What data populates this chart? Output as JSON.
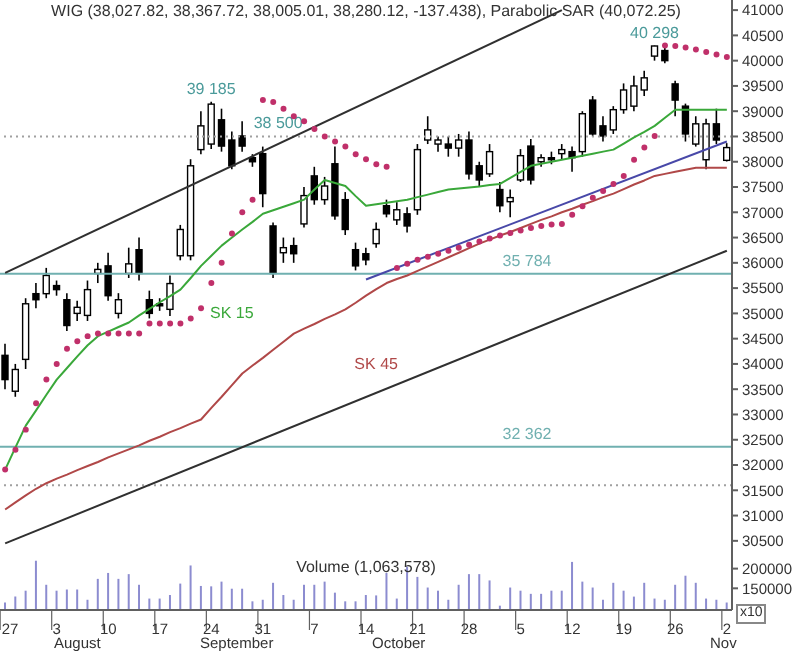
{
  "chart_data": [
    {
      "type": "candlestick",
      "title": "WIG (38,027.82, 38,367.72, 38,005.01, 38,280.12, -137.438), Parabolic SAR (40,072.25)",
      "categories": [
        "27",
        null,
        null,
        null,
        null,
        "3",
        null,
        null,
        null,
        null,
        "10",
        null,
        null,
        null,
        null,
        "17",
        null,
        null,
        null,
        null,
        "24",
        null,
        null,
        null,
        null,
        "31",
        null,
        null,
        null,
        null,
        "7",
        null,
        null,
        null,
        null,
        "14",
        null,
        null,
        null,
        null,
        "21",
        null,
        null,
        null,
        null,
        "28",
        null,
        null,
        null,
        null,
        "5",
        null,
        null,
        null,
        null,
        "12",
        null,
        null,
        null,
        null,
        "19",
        null,
        null,
        null,
        null,
        "26",
        null,
        null,
        null,
        null,
        "2"
      ],
      "tick_labels": "y",
      "color": "#000000",
      "ohlc": [
        [
          34170,
          34400,
          33500,
          33690
        ],
        [
          33460,
          34000,
          33350,
          33890
        ],
        [
          34090,
          35300,
          33900,
          35190
        ],
        [
          35390,
          35600,
          35100,
          35270
        ],
        [
          35390,
          35900,
          35300,
          35750
        ],
        [
          35550,
          35650,
          35350,
          35470
        ],
        [
          35270,
          35400,
          34650,
          34760
        ],
        [
          35000,
          35250,
          34850,
          35120
        ],
        [
          34960,
          35650,
          34850,
          35470
        ],
        [
          35790,
          36000,
          35600,
          35870
        ],
        [
          35940,
          36200,
          35250,
          35350
        ],
        [
          35000,
          35400,
          34900,
          35270
        ],
        [
          35790,
          36300,
          35700,
          35980
        ],
        [
          36260,
          36500,
          35650,
          35790
        ],
        [
          35270,
          35450,
          34900,
          35000
        ],
        [
          35190,
          35300,
          35050,
          35150
        ],
        [
          35080,
          35750,
          34950,
          35590
        ],
        [
          36140,
          36750,
          36050,
          36660
        ],
        [
          36140,
          38050,
          36050,
          37920
        ],
        [
          38240,
          39000,
          38150,
          38710
        ],
        [
          38350,
          39185,
          38250,
          39140
        ],
        [
          38830,
          39050,
          38200,
          38310
        ],
        [
          38430,
          38600,
          37850,
          37920
        ],
        [
          38510,
          38800,
          38200,
          38310
        ],
        [
          38080,
          38150,
          37900,
          38000
        ],
        [
          38160,
          38300,
          37100,
          37370
        ],
        [
          36730,
          36800,
          35700,
          35790
        ],
        [
          36200,
          36500,
          36000,
          36300
        ],
        [
          36340,
          36500,
          36000,
          36180
        ],
        [
          36770,
          37500,
          36700,
          37330
        ],
        [
          37720,
          37900,
          37150,
          37250
        ],
        [
          37250,
          37700,
          37150,
          37520
        ],
        [
          37960,
          38300,
          36850,
          36930
        ],
        [
          37250,
          37400,
          36550,
          36660
        ],
        [
          36260,
          36400,
          35850,
          35940
        ],
        [
          36180,
          36300,
          35950,
          36060
        ],
        [
          36380,
          36800,
          36300,
          36660
        ],
        [
          37130,
          37250,
          36900,
          36970
        ],
        [
          36850,
          37200,
          36750,
          37050
        ],
        [
          36970,
          37100,
          36600,
          36730
        ],
        [
          37050,
          38350,
          36950,
          38240
        ],
        [
          38430,
          38900,
          38350,
          38630
        ],
        [
          38350,
          38500,
          38200,
          38430
        ],
        [
          38350,
          38500,
          38100,
          38270
        ],
        [
          38270,
          38550,
          38100,
          38430
        ],
        [
          38430,
          38600,
          37650,
          37760
        ],
        [
          37920,
          38000,
          37500,
          37640
        ],
        [
          37760,
          38350,
          37700,
          38200
        ],
        [
          37450,
          37600,
          37000,
          37130
        ],
        [
          37210,
          37450,
          36900,
          37290
        ],
        [
          37640,
          38250,
          37600,
          38120
        ],
        [
          38310,
          38450,
          37550,
          37640
        ],
        [
          38000,
          38150,
          37900,
          38080
        ],
        [
          38080,
          38200,
          37950,
          38040
        ],
        [
          38160,
          38350,
          38050,
          38240
        ],
        [
          38200,
          38300,
          37800,
          38080
        ],
        [
          38200,
          39000,
          38100,
          38950
        ],
        [
          39220,
          39300,
          38500,
          38550
        ],
        [
          38710,
          38900,
          38400,
          38510
        ],
        [
          38630,
          39100,
          38550,
          39030
        ],
        [
          39030,
          39550,
          38950,
          39420
        ],
        [
          39100,
          39700,
          39000,
          39500
        ],
        [
          39420,
          39800,
          39300,
          39660
        ],
        [
          40090,
          40298,
          40000,
          40290
        ],
        [
          40200,
          40280,
          39950,
          40000
        ],
        [
          39540,
          39600,
          38900,
          39220
        ],
        [
          39100,
          39150,
          38400,
          38550
        ],
        [
          38350,
          38900,
          38300,
          38750
        ],
        [
          38040,
          38850,
          37850,
          38750
        ],
        [
          38750,
          39050,
          38350,
          38430
        ],
        [
          38027.82,
          38367.72,
          38005.01,
          38280.12
        ]
      ],
      "series": [
        {
          "type": "line",
          "name": "SK 15",
          "color": "#3aa83a",
          "values": [
            31910,
            32350,
            32780,
            33080,
            33390,
            33690,
            33920,
            34150,
            34370,
            34550,
            34640,
            34730,
            34820,
            34960,
            35090,
            35220,
            35340,
            35470,
            35700,
            35940,
            36140,
            36340,
            36500,
            36660,
            36810,
            36970,
            37040,
            37110,
            37180,
            37250,
            37450,
            37640,
            37580,
            37520,
            37320,
            37130,
            37160,
            37190,
            37220,
            37250,
            37300,
            37350,
            37400,
            37450,
            37470,
            37490,
            37510,
            37540,
            37560,
            37680,
            37800,
            37920,
            37960,
            38000,
            38040,
            38080,
            38120,
            38160,
            38200,
            38240,
            38360,
            38480,
            38590,
            38710,
            38870,
            39030,
            39030,
            39030,
            39030,
            39030,
            39030
          ]
        },
        {
          "type": "line",
          "name": "SK 45",
          "color": "#b04848",
          "values": [
            31120,
            31260,
            31400,
            31530,
            31640,
            31730,
            31810,
            31900,
            31980,
            32060,
            32150,
            32230,
            32310,
            32390,
            32480,
            32560,
            32650,
            32730,
            32820,
            32900,
            33130,
            33350,
            33580,
            33810,
            33970,
            34120,
            34280,
            34440,
            34600,
            34700,
            34790,
            34890,
            34980,
            35080,
            35210,
            35350,
            35480,
            35600,
            35680,
            35750,
            35840,
            35930,
            36020,
            36110,
            36200,
            36290,
            36380,
            36460,
            36540,
            36610,
            36690,
            36770,
            36850,
            36920,
            37000,
            37070,
            37150,
            37220,
            37300,
            37370,
            37460,
            37550,
            37630,
            37720,
            37760,
            37800,
            37840,
            37880,
            37880,
            37880,
            37880
          ]
        },
        {
          "type": "scatter",
          "marker": "circle",
          "color": "#c0306a",
          "values": [
            31910,
            32300,
            32700,
            33220,
            33690,
            34000,
            34300,
            34450,
            34550,
            34600,
            34600,
            34600,
            34600,
            34600,
            34800,
            34800,
            34800,
            34800,
            34900,
            35100,
            35600,
            36000,
            36580,
            37000,
            37250,
            39220,
            39180,
            39050,
            38900,
            38800,
            38650,
            38500,
            38400,
            38300,
            38150,
            38050,
            37950,
            37900,
            35900,
            35980,
            36060,
            36120,
            36180,
            36240,
            36300,
            36360,
            36420,
            36480,
            36540,
            36590,
            36640,
            36690,
            36730,
            36760,
            36770,
            36950,
            37120,
            37290,
            37420,
            37560,
            37720,
            38040,
            38280,
            38510,
            40300,
            40290,
            40260,
            40220,
            40170,
            40120,
            40072.25
          ]
        },
        {
          "type": "line",
          "color": "#303030",
          "values": [
            35800,
            null,
            null,
            null,
            null,
            null,
            null,
            null,
            null,
            null,
            null,
            null,
            null,
            null,
            null,
            null,
            null,
            null,
            null,
            null,
            null,
            null,
            null,
            null,
            null,
            null,
            null,
            null,
            null,
            null,
            null,
            null,
            null,
            null,
            null,
            null,
            null,
            null,
            null,
            null,
            null,
            null,
            null,
            null,
            null,
            null,
            null,
            null,
            null,
            null,
            null,
            null,
            null,
            null,
            41000,
            null,
            null,
            null,
            null,
            null,
            null,
            null,
            null,
            null,
            null,
            null,
            null,
            null,
            null,
            null,
            null
          ]
        },
        {
          "type": "line",
          "color": "#303030",
          "values": [
            30450,
            null,
            null,
            null,
            null,
            null,
            null,
            null,
            null,
            null,
            null,
            null,
            null,
            null,
            null,
            null,
            null,
            null,
            null,
            null,
            null,
            null,
            null,
            null,
            null,
            null,
            null,
            null,
            null,
            null,
            null,
            null,
            null,
            null,
            null,
            null,
            null,
            null,
            null,
            null,
            null,
            null,
            null,
            null,
            null,
            null,
            null,
            null,
            null,
            null,
            null,
            null,
            null,
            null,
            null,
            null,
            null,
            null,
            null,
            null,
            null,
            null,
            null,
            null,
            null,
            null,
            null,
            null,
            null,
            null,
            36240
          ]
        },
        {
          "type": "line",
          "color": "#4848a8",
          "values": [
            null,
            null,
            null,
            null,
            null,
            null,
            null,
            null,
            null,
            null,
            null,
            null,
            null,
            null,
            null,
            null,
            null,
            null,
            null,
            null,
            null,
            null,
            null,
            null,
            null,
            null,
            null,
            null,
            null,
            null,
            null,
            null,
            null,
            null,
            null,
            35670,
            null,
            null,
            null,
            null,
            null,
            null,
            null,
            null,
            null,
            null,
            null,
            null,
            null,
            null,
            null,
            null,
            null,
            null,
            null,
            null,
            null,
            null,
            null,
            null,
            null,
            null,
            null,
            null,
            null,
            null,
            null,
            null,
            null,
            null,
            38400
          ]
        }
      ],
      "ylim": [
        30200,
        41200
      ],
      "yticks": [
        30500,
        31000,
        31500,
        32000,
        32500,
        33000,
        33500,
        34000,
        34500,
        35000,
        35500,
        36000,
        36500,
        37000,
        37500,
        38000,
        38500,
        39000,
        39500,
        40000,
        40500,
        41000
      ],
      "ref_lines": [
        {
          "axis": "y",
          "value": 38500,
          "label": "38 500",
          "color": "#a0a0a0",
          "line_style": "dotted"
        },
        {
          "axis": "y",
          "value": 35784,
          "label": "35 784",
          "color": "#70b0b0",
          "line_style": "solid"
        },
        {
          "axis": "y",
          "value": 32362,
          "label": "32 362",
          "color": "#70b0b0",
          "line_style": "solid"
        },
        {
          "axis": "y",
          "value": 31600,
          "label": null,
          "color": "#a0a0a0",
          "line_style": "dotted"
        }
      ],
      "annotations": [
        {
          "text": "39 185",
          "y": 39185
        },
        {
          "text": "40 298",
          "y": 40298
        }
      ]
    },
    {
      "type": "bar",
      "title": "Volume (1,063,578)",
      "color": "#8c8cd0",
      "categories": [
        "27",
        null,
        null,
        null,
        null,
        "3",
        null,
        null,
        null,
        null,
        "10",
        null,
        null,
        null,
        null,
        "17",
        null,
        null,
        null,
        null,
        "24",
        null,
        null,
        null,
        null,
        "31",
        null,
        null,
        null,
        null,
        "7",
        null,
        null,
        null,
        null,
        "14",
        null,
        null,
        null,
        null,
        "21",
        null,
        null,
        null,
        null,
        "28",
        null,
        null,
        null,
        null,
        "5",
        null,
        null,
        null,
        null,
        "12",
        null,
        null,
        null,
        null,
        "19",
        null,
        null,
        null,
        null,
        "26",
        null,
        null,
        null,
        null,
        "2"
      ],
      "values": [
        114000,
        129000,
        144000,
        220000,
        159000,
        144000,
        147000,
        147000,
        121000,
        174000,
        189000,
        174000,
        186000,
        159000,
        124000,
        124000,
        133000,
        162000,
        208000,
        156000,
        155000,
        167000,
        149000,
        149000,
        117000,
        121000,
        164000,
        133000,
        121000,
        159000,
        159000,
        167000,
        139000,
        117000,
        117000,
        133000,
        132000,
        189000,
        124000,
        205000,
        179000,
        152000,
        144000,
        121000,
        159000,
        186000,
        186000,
        170000,
        106000,
        152000,
        144000,
        136000,
        136000,
        144000,
        144000,
        217000,
        167000,
        152000,
        121000,
        164000,
        144000,
        129000,
        164000,
        124000,
        121000,
        159000,
        182000,
        164000,
        124000,
        121000,
        114000
      ],
      "ylim": [
        95000,
        232000
      ],
      "yticks": [
        150000,
        200000
      ],
      "annotations": [
        "August",
        "September",
        "October",
        "Nov",
        "x10"
      ]
    }
  ]
}
